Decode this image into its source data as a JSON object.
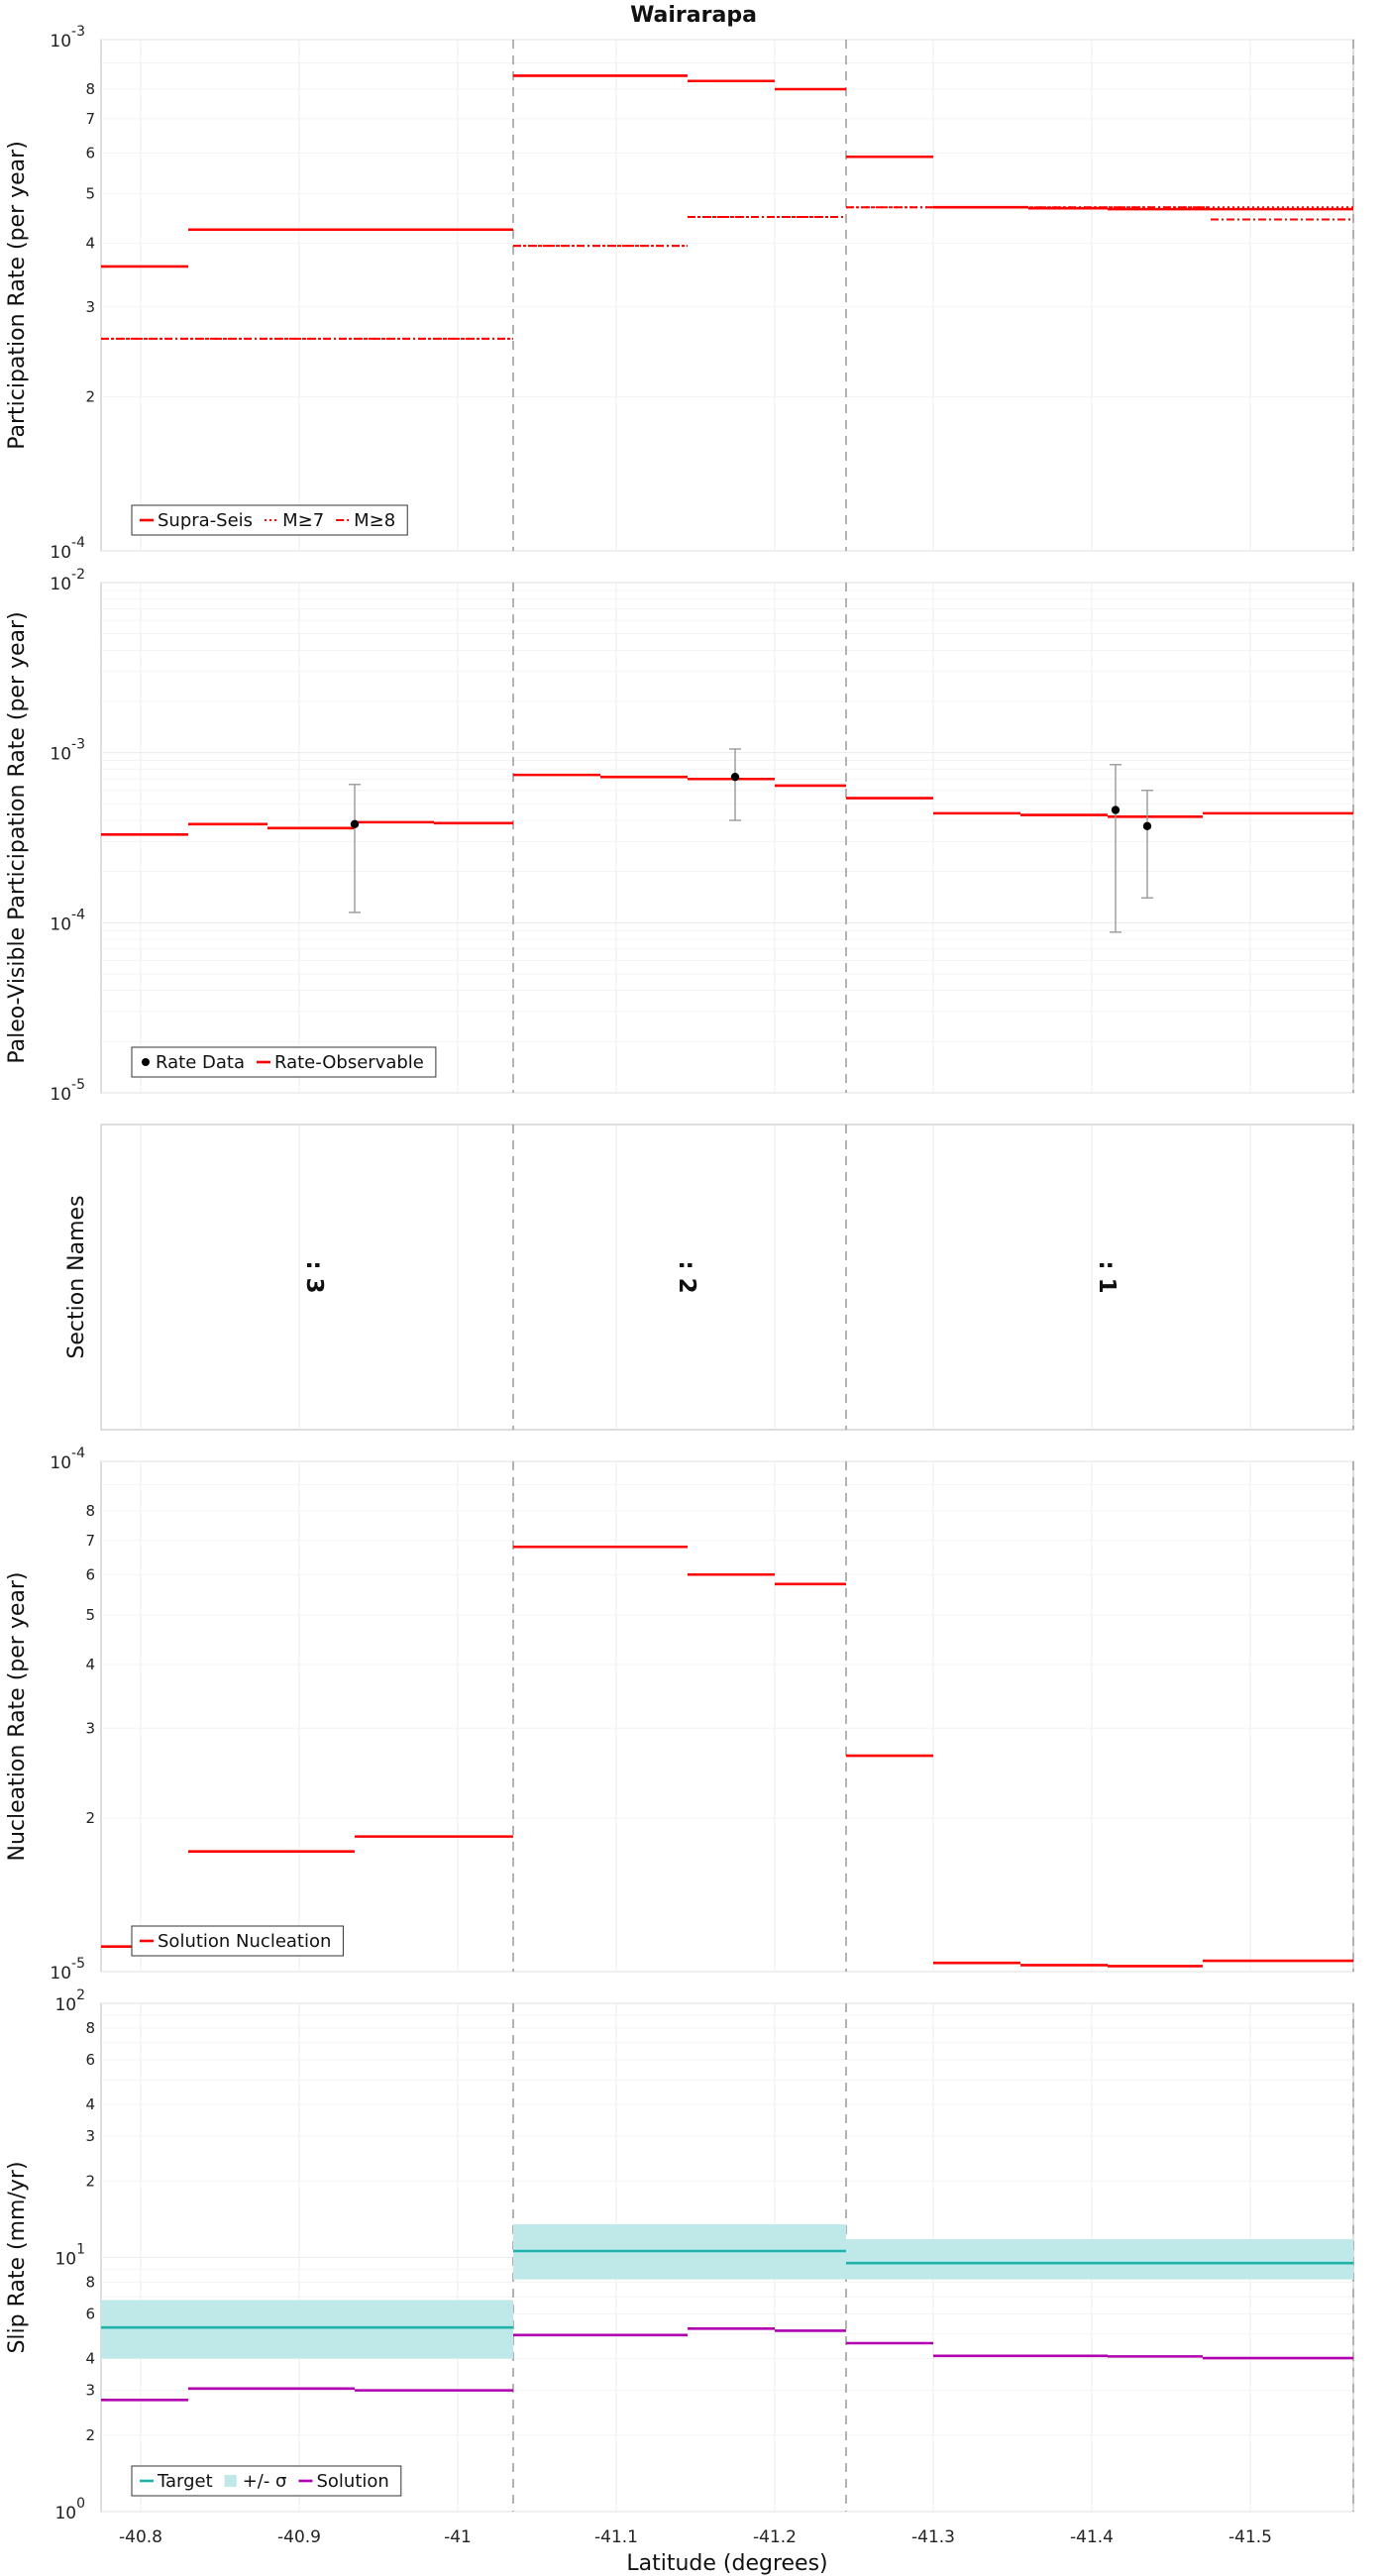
{
  "chart_data": {
    "title": "Wairarapa",
    "type": "line",
    "xlabel": "Latitude (degrees)",
    "xlim": [
      -40.775,
      -41.565
    ],
    "xticks": [
      {
        "value": -40.8,
        "label": "-40.8"
      },
      {
        "value": -40.9,
        "label": "-40.9"
      },
      {
        "value": -41.0,
        "label": "-41"
      },
      {
        "value": -41.1,
        "label": "-41.1"
      },
      {
        "value": -41.2,
        "label": "-41.2"
      },
      {
        "value": -41.3,
        "label": "-41.3"
      },
      {
        "value": -41.4,
        "label": "-41.4"
      },
      {
        "value": -41.5,
        "label": "-41.5"
      }
    ],
    "section_boundaries": [
      -41.035,
      -41.245,
      -41.565
    ],
    "panels": [
      {
        "id": "participation",
        "ylabel": "Participation Rate (per year)",
        "scale": "log",
        "ylim": [
          0.0001,
          0.001
        ],
        "major_ticks": [
          {
            "value": 0.0001,
            "base": "10",
            "exp": "-4"
          },
          {
            "value": 0.001,
            "base": "10",
            "exp": "-3"
          }
        ],
        "minor_ticks": [
          {
            "value": 0.0002,
            "label": "2"
          },
          {
            "value": 0.0003,
            "label": "3"
          },
          {
            "value": 0.0004,
            "label": "4"
          },
          {
            "value": 0.0005,
            "label": "5"
          },
          {
            "value": 0.0006,
            "label": "6"
          },
          {
            "value": 0.0007,
            "label": "7"
          },
          {
            "value": 0.0008,
            "label": "8"
          }
        ],
        "series": [
          {
            "name": "Supra-Seis",
            "color": "#ff0000",
            "style": "solid",
            "segments": [
              [
                -40.775,
                -40.83,
                0.00036
              ],
              [
                -40.83,
                -41.035,
                0.000425
              ],
              [
                -41.035,
                -41.145,
                0.00085
              ],
              [
                -41.145,
                -41.2,
                0.00083
              ],
              [
                -41.2,
                -41.245,
                0.0008
              ],
              [
                -41.245,
                -41.3,
                0.00059
              ],
              [
                -41.3,
                -41.36,
                0.00047
              ],
              [
                -41.36,
                -41.41,
                0.000468
              ],
              [
                -41.41,
                -41.565,
                0.000466
              ]
            ]
          },
          {
            "name": "M≥7",
            "color": "#ff0000",
            "style": "dotted",
            "segments": [
              [
                -40.775,
                -41.035,
                0.00026
              ],
              [
                -41.035,
                -41.145,
                0.000395
              ],
              [
                -41.145,
                -41.245,
                0.00045
              ],
              [
                -41.245,
                -41.565,
                0.00047
              ]
            ]
          },
          {
            "name": "M≥8",
            "color": "#ff0000",
            "style": "dashdot",
            "segments": [
              [
                -40.775,
                -41.035,
                0.00026
              ],
              [
                -41.035,
                -41.145,
                0.000395
              ],
              [
                -41.145,
                -41.245,
                0.00045
              ],
              [
                -41.245,
                -41.475,
                0.00047
              ],
              [
                -41.475,
                -41.565,
                0.000445
              ]
            ]
          }
        ]
      },
      {
        "id": "paleo",
        "ylabel": "Paleo-Visible Participation Rate (per year)",
        "scale": "log",
        "ylim": [
          1e-05,
          0.01
        ],
        "major_ticks": [
          {
            "value": 1e-05,
            "base": "10",
            "exp": "-5"
          },
          {
            "value": 0.0001,
            "base": "10",
            "exp": "-4"
          },
          {
            "value": 0.001,
            "base": "10",
            "exp": "-3"
          },
          {
            "value": 0.01,
            "base": "10",
            "exp": "-2"
          }
        ],
        "series": [
          {
            "name": "Rate-Observable",
            "color": "#ff0000",
            "style": "solid",
            "segments": [
              [
                -40.775,
                -40.83,
                0.00033
              ],
              [
                -40.83,
                -40.88,
                0.00038
              ],
              [
                -40.88,
                -40.935,
                0.00036
              ],
              [
                -40.935,
                -40.985,
                0.00039
              ],
              [
                -40.985,
                -41.035,
                0.000385
              ],
              [
                -41.035,
                -41.09,
                0.00074
              ],
              [
                -41.09,
                -41.145,
                0.00072
              ],
              [
                -41.145,
                -41.2,
                0.0007
              ],
              [
                -41.2,
                -41.245,
                0.00064
              ],
              [
                -41.245,
                -41.3,
                0.00054
              ],
              [
                -41.3,
                -41.355,
                0.00044
              ],
              [
                -41.355,
                -41.41,
                0.00043
              ],
              [
                -41.41,
                -41.47,
                0.00042
              ],
              [
                -41.47,
                -41.565,
                0.00044
              ]
            ]
          }
        ],
        "points": {
          "name": "Rate Data",
          "color": "#000000",
          "data": [
            {
              "x": -40.935,
              "y": 0.00038,
              "low": 0.000115,
              "high": 0.00065
            },
            {
              "x": -41.175,
              "y": 0.00072,
              "low": 0.0004,
              "high": 0.00105
            },
            {
              "x": -41.415,
              "y": 0.00046,
              "low": 8.8e-05,
              "high": 0.00085
            },
            {
              "x": -41.435,
              "y": 0.00037,
              "low": 0.00014,
              "high": 0.0006
            }
          ]
        }
      },
      {
        "id": "sections",
        "ylabel": "Section Names",
        "labels": [
          {
            "x": -40.905,
            "text": ": 3"
          },
          {
            "x": -41.14,
            "text": ": 2"
          },
          {
            "x": -41.405,
            "text": ": 1"
          }
        ]
      },
      {
        "id": "nucleation",
        "ylabel": "Nucleation Rate (per year)",
        "scale": "log",
        "ylim": [
          1e-05,
          0.0001
        ],
        "major_ticks": [
          {
            "value": 1e-05,
            "base": "10",
            "exp": "-5"
          },
          {
            "value": 0.0001,
            "base": "10",
            "exp": "-4"
          }
        ],
        "minor_ticks": [
          {
            "value": 2e-05,
            "label": "2"
          },
          {
            "value": 3e-05,
            "label": "3"
          },
          {
            "value": 4e-05,
            "label": "4"
          },
          {
            "value": 5e-05,
            "label": "5"
          },
          {
            "value": 6e-05,
            "label": "6"
          },
          {
            "value": 7e-05,
            "label": "7"
          },
          {
            "value": 8e-05,
            "label": "8"
          }
        ],
        "series": [
          {
            "name": "Solution Nucleation",
            "color": "#ff0000",
            "style": "solid",
            "segments": [
              [
                -40.775,
                -40.83,
                1.12e-05
              ],
              [
                -40.83,
                -40.935,
                1.72e-05
              ],
              [
                -40.935,
                -41.035,
                1.84e-05
              ],
              [
                -41.035,
                -41.145,
                6.8e-05
              ],
              [
                -41.145,
                -41.2,
                6e-05
              ],
              [
                -41.2,
                -41.245,
                5.75e-05
              ],
              [
                -41.245,
                -41.3,
                2.65e-05
              ],
              [
                -41.3,
                -41.355,
                1.04e-05
              ],
              [
                -41.355,
                -41.41,
                1.03e-05
              ],
              [
                -41.41,
                -41.47,
                1.025e-05
              ],
              [
                -41.47,
                -41.565,
                1.05e-05
              ]
            ]
          }
        ]
      },
      {
        "id": "slip",
        "ylabel": "Slip Rate (mm/yr)",
        "scale": "log",
        "ylim": [
          1,
          100
        ],
        "major_ticks": [
          {
            "value": 1,
            "base": "10",
            "exp": "0"
          },
          {
            "value": 10,
            "base": "10",
            "exp": "1"
          },
          {
            "value": 100,
            "base": "10",
            "exp": "2"
          }
        ],
        "minor_ticks": [
          {
            "value": 2,
            "label": "2"
          },
          {
            "value": 3,
            "label": "3"
          },
          {
            "value": 4,
            "label": "4"
          },
          {
            "value": 6,
            "label": "6"
          },
          {
            "value": 8,
            "label": "8"
          },
          {
            "value": 20,
            "label": "2"
          },
          {
            "value": 30,
            "label": "3"
          },
          {
            "value": 40,
            "label": "4"
          },
          {
            "value": 60,
            "label": "6"
          },
          {
            "value": 80,
            "label": "8"
          }
        ],
        "bands": {
          "name": "+/- σ",
          "color": "#bfe9e9",
          "data": [
            [
              -40.775,
              -41.035,
              4.0,
              6.8
            ],
            [
              -41.035,
              -41.245,
              8.2,
              13.5
            ],
            [
              -41.245,
              -41.565,
              8.2,
              11.8
            ]
          ]
        },
        "series": [
          {
            "name": "Target",
            "color": "#20b2aa",
            "style": "solid",
            "segments": [
              [
                -40.775,
                -41.035,
                5.3
              ],
              [
                -41.035,
                -41.245,
                10.6
              ],
              [
                -41.245,
                -41.565,
                9.5
              ]
            ]
          },
          {
            "name": "Solution",
            "color": "#b000b0",
            "style": "solid",
            "segments": [
              [
                -40.775,
                -40.83,
                2.75
              ],
              [
                -40.83,
                -40.935,
                3.05
              ],
              [
                -40.935,
                -41.035,
                3.0
              ],
              [
                -41.035,
                -41.145,
                4.95
              ],
              [
                -41.145,
                -41.2,
                5.25
              ],
              [
                -41.2,
                -41.245,
                5.15
              ],
              [
                -41.245,
                -41.3,
                4.6
              ],
              [
                -41.3,
                -41.41,
                4.1
              ],
              [
                -41.41,
                -41.47,
                4.08
              ],
              [
                -41.47,
                -41.565,
                4.02
              ]
            ]
          }
        ]
      }
    ],
    "legends": {
      "participation": [
        {
          "label": "Supra-Seis",
          "style": "solid",
          "color": "#ff0000"
        },
        {
          "label": "M≥7",
          "style": "dotted",
          "color": "#ff0000"
        },
        {
          "label": "M≥8",
          "style": "dashdot",
          "color": "#ff0000"
        }
      ],
      "paleo": [
        {
          "label": "Rate Data",
          "style": "dot",
          "color": "#000000"
        },
        {
          "label": "Rate-Observable",
          "style": "solid",
          "color": "#ff0000"
        }
      ],
      "nucleation": [
        {
          "label": "Solution Nucleation",
          "style": "solid",
          "color": "#ff0000"
        }
      ],
      "slip": [
        {
          "label": "Target",
          "style": "solid",
          "color": "#20b2aa"
        },
        {
          "label": "+/- σ",
          "style": "band",
          "color": "#bfe9e9"
        },
        {
          "label": "Solution",
          "style": "solid",
          "color": "#b000b0"
        }
      ]
    },
    "legend_position": "bottom-left",
    "grid": true
  }
}
